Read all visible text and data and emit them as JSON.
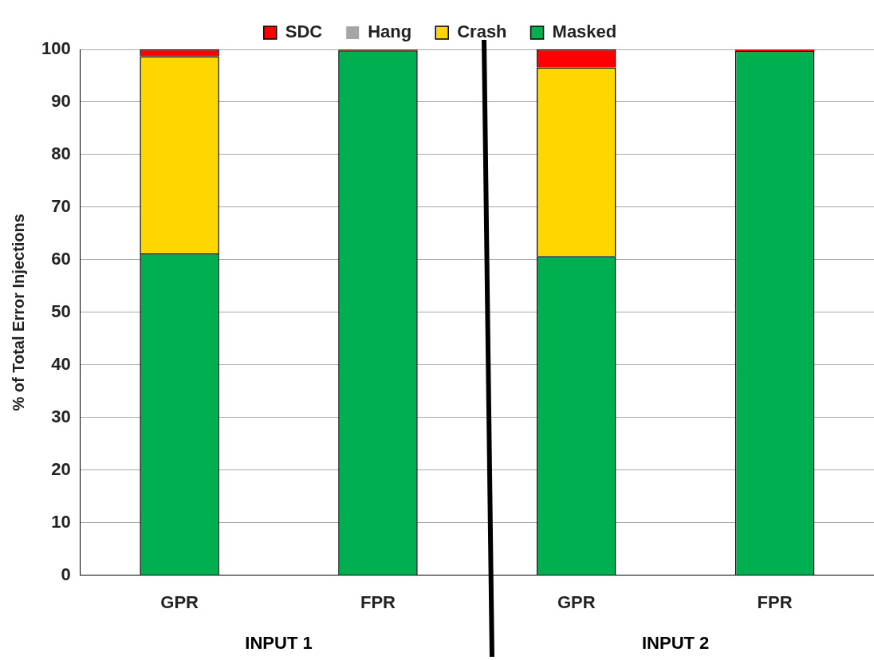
{
  "chart_data": {
    "type": "bar",
    "stacked": true,
    "ylabel": "% of Total Error Injections",
    "categories": [
      "GPR",
      "FPR",
      "GPR",
      "FPR"
    ],
    "series": [
      {
        "name": "Masked",
        "color": "#00b050",
        "values": [
          61.2,
          99.8,
          60.7,
          99.7
        ]
      },
      {
        "name": "Crash",
        "color": "#ffd700",
        "values": [
          37.5,
          0,
          35.9,
          0
        ]
      },
      {
        "name": "Hang",
        "color": "#a6a6a6",
        "values": [
          0,
          0,
          0,
          0
        ]
      },
      {
        "name": "SDC",
        "color": "#ff0000",
        "values": [
          1.3,
          0.2,
          3.4,
          0.3
        ]
      }
    ],
    "ylim": [
      0,
      100
    ],
    "yticks": [
      0,
      10,
      20,
      30,
      40,
      50,
      60,
      70,
      80,
      90,
      100
    ],
    "grid": "y",
    "legend": "top",
    "annotations": [
      "INPUT 1",
      "INPUT 2"
    ]
  }
}
